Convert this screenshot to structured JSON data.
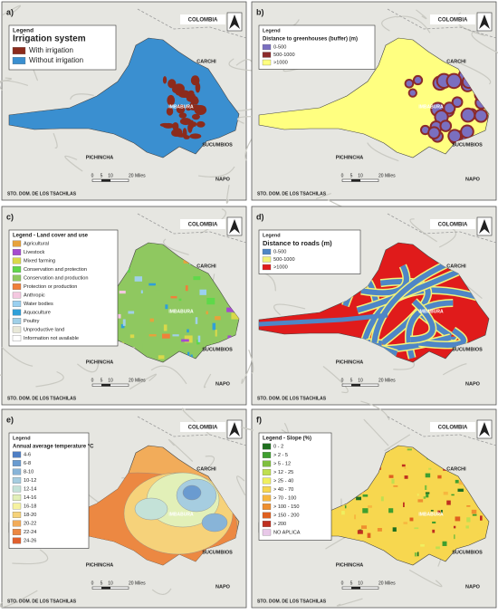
{
  "panels": [
    {
      "label": "a)",
      "legend_heading": "Legend",
      "legend_title": "Irrigation system",
      "items": [
        {
          "label": "With irrigation",
          "color": "#8c2b1c"
        },
        {
          "label": "Without irrigation",
          "color": "#3a8fd0"
        }
      ]
    },
    {
      "label": "b)",
      "legend_heading": "Legend",
      "legend_title": "Distance to greenhouses (buffer) (m)",
      "items": [
        {
          "label": "0-500",
          "color": "#7a6fc0"
        },
        {
          "label": "500-1000",
          "color": "#8b2a2a"
        },
        {
          "label": ">1000",
          "color": "#ffff80"
        }
      ]
    },
    {
      "label": "c)",
      "legend_title": "Legend - Land cover and use",
      "items": [
        {
          "label": "Agricultural",
          "color": "#e6a23c"
        },
        {
          "label": "Livestock",
          "color": "#a64ad0"
        },
        {
          "label": "Mixed farming",
          "color": "#d9d94a"
        },
        {
          "label": "Conservation and protection",
          "color": "#5fd84a"
        },
        {
          "label": "Conservation and production",
          "color": "#8fc860"
        },
        {
          "label": "Protection or production",
          "color": "#f07f3a"
        },
        {
          "label": "Anthropic",
          "color": "#f4c8e0"
        },
        {
          "label": "Water bodies",
          "color": "#9ad0f0"
        },
        {
          "label": "Aquaculture",
          "color": "#2f9fd8"
        },
        {
          "label": "Poultry",
          "color": "#a0d0e8"
        },
        {
          "label": "Unproductive land",
          "color": "#e8e8d8"
        },
        {
          "label": "Information not available",
          "color": "#ffffff"
        }
      ]
    },
    {
      "label": "d)",
      "legend_heading": "Legend",
      "legend_title": "Distance to roads (m)",
      "items": [
        {
          "label": "0-500",
          "color": "#4f86c6"
        },
        {
          "label": "500-1000",
          "color": "#f2f27a"
        },
        {
          "label": ">1000",
          "color": "#e01b1b"
        }
      ]
    },
    {
      "label": "e)",
      "legend_heading": "Legend",
      "legend_title": "Annual average temperature °C",
      "items": [
        {
          "label": "4-6",
          "color": "#4f7fc4"
        },
        {
          "label": "6-8",
          "color": "#6a9bd0"
        },
        {
          "label": "8-10",
          "color": "#88b4d8"
        },
        {
          "label": "10-12",
          "color": "#a6cde0"
        },
        {
          "label": "12-14",
          "color": "#c4e2d8"
        },
        {
          "label": "14-16",
          "color": "#e2f0b8"
        },
        {
          "label": "16-18",
          "color": "#f6f2a0"
        },
        {
          "label": "18-20",
          "color": "#f6d27a"
        },
        {
          "label": "20-22",
          "color": "#f2ac5a"
        },
        {
          "label": "22-24",
          "color": "#ec8842"
        },
        {
          "label": "24-26",
          "color": "#e0602e"
        }
      ]
    },
    {
      "label": "f)",
      "legend_title": "Legend - Slope (%)",
      "items": [
        {
          "label": "0 - 2",
          "color": "#1f6f1f"
        },
        {
          "label": "> 2 - 5",
          "color": "#3f9f2f"
        },
        {
          "label": "> 5 - 12",
          "color": "#7fbf3f"
        },
        {
          "label": "> 12 - 25",
          "color": "#bfdf4f"
        },
        {
          "label": "> 25 - 40",
          "color": "#efef5f"
        },
        {
          "label": "> 40 - 70",
          "color": "#f7d74f"
        },
        {
          "label": "> 70 - 100",
          "color": "#f7b73f"
        },
        {
          "label": "> 100 - 150",
          "color": "#ef8f2f"
        },
        {
          "label": "> 150 - 200",
          "color": "#df5f1f"
        },
        {
          "label": "> 200",
          "color": "#bf2f1f"
        },
        {
          "label": "NO APLICA",
          "color": "#e8c8e8"
        }
      ]
    }
  ],
  "places": {
    "colombia": "COLOMBIA",
    "carchi": "CARCHI",
    "imbabura": "IMBABURA",
    "sucumbios": "SUCUMBIOS",
    "pichincha": "PICHINCHA",
    "napo": "NAPO",
    "tsachilas": "STO. DOM. DE LOS TSACHILAS"
  },
  "scale": [
    "0",
    "5",
    "10",
    "20 Miles"
  ]
}
